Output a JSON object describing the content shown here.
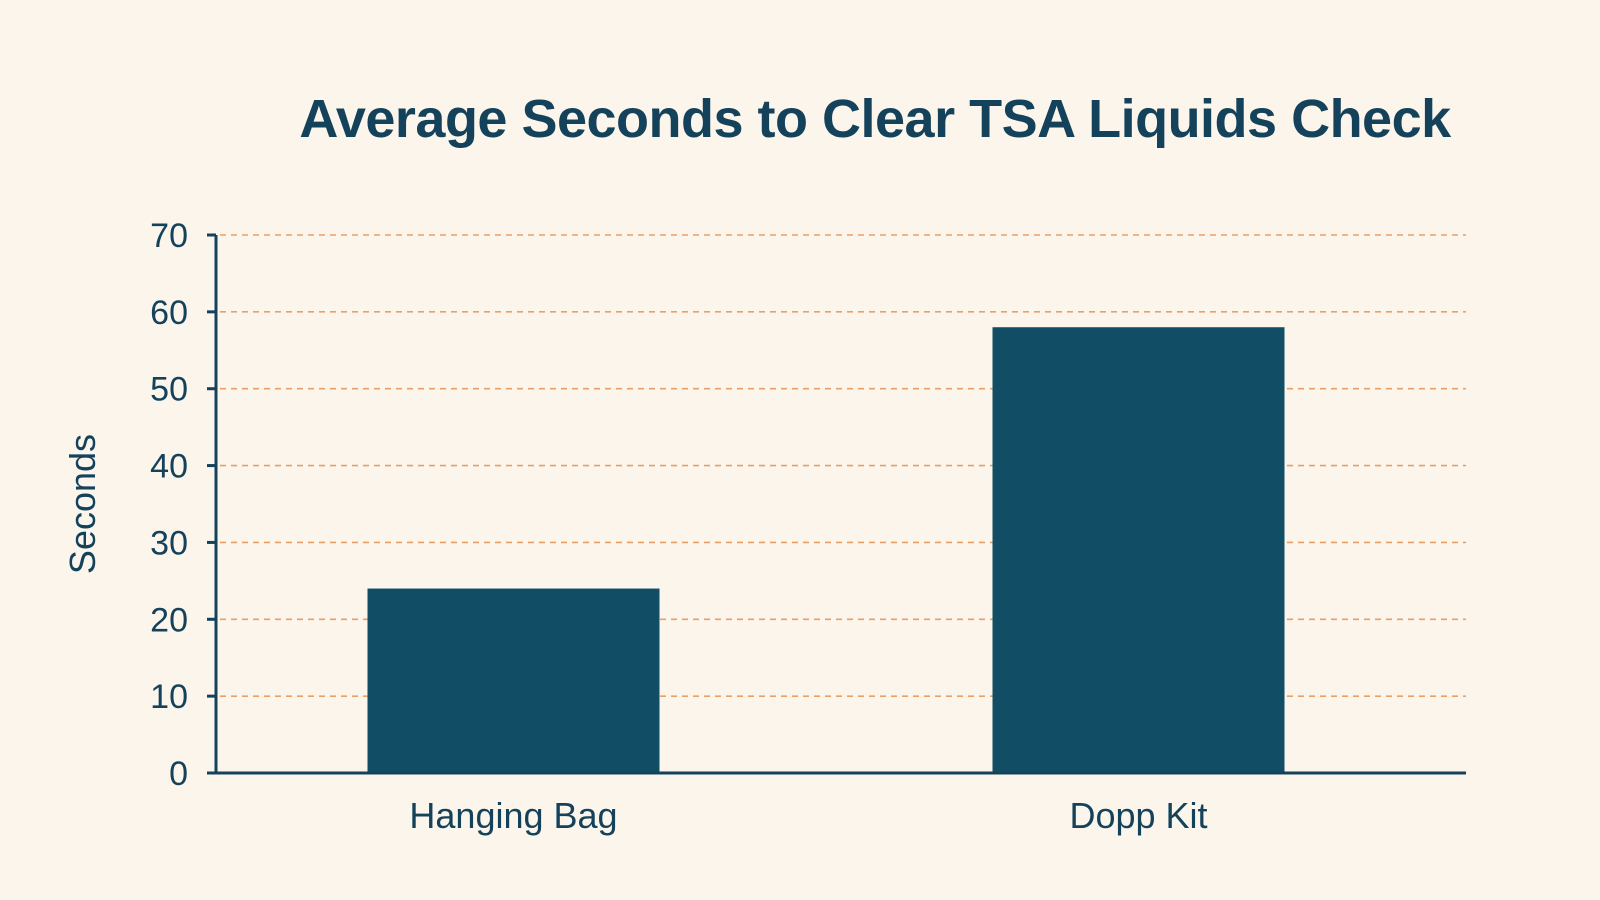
{
  "chart_data": {
    "type": "bar",
    "title": "Average Seconds to Clear TSA Liquids Check",
    "xlabel": "",
    "ylabel": "Seconds",
    "categories": [
      "Hanging Bag",
      "Dopp Kit"
    ],
    "values": [
      24,
      58
    ],
    "ylim": [
      0,
      70
    ],
    "yticks": [
      0,
      10,
      20,
      30,
      40,
      50,
      60,
      70
    ],
    "grid": true,
    "colors": {
      "bar": "#124d66",
      "grid": "#e9a066",
      "axis": "#15425b",
      "background": "#fbf5ec"
    }
  }
}
